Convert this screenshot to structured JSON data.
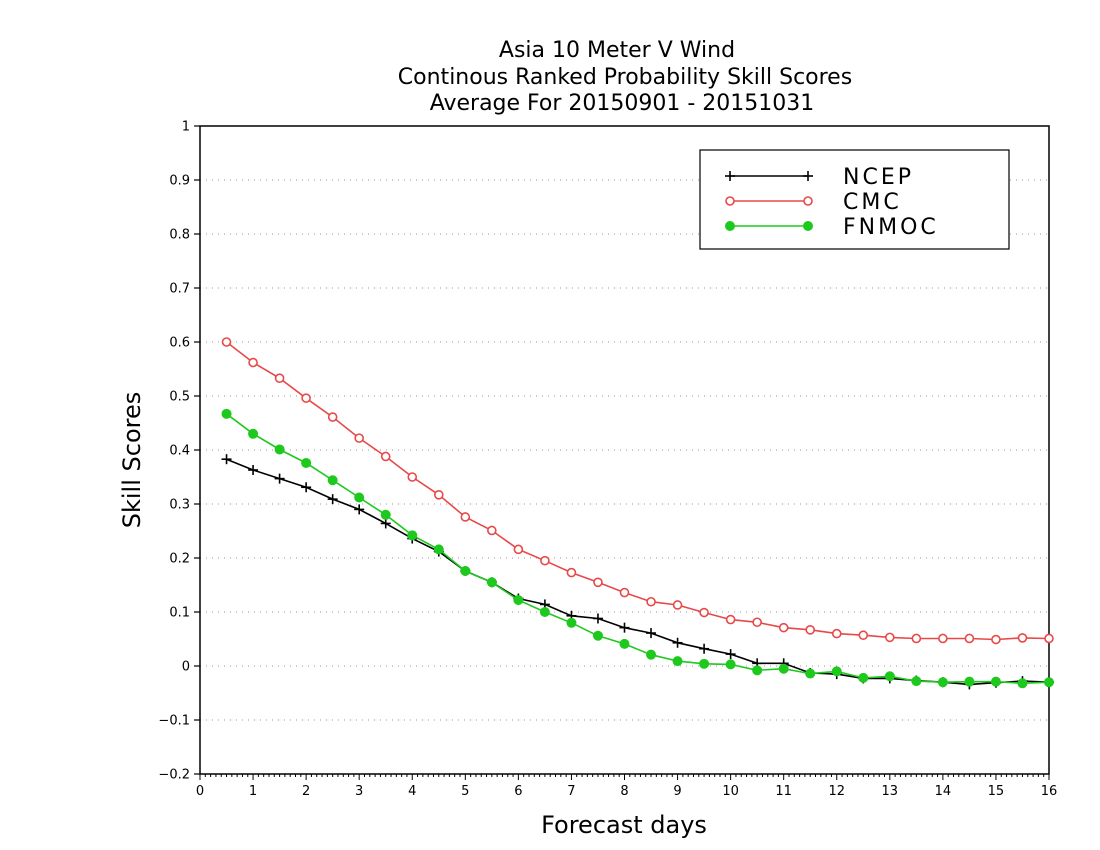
{
  "chart_data": {
    "type": "line",
    "title": [
      "Asia 10 Meter V Wind",
      "Continous Ranked Probability Skill Scores",
      "Average For 20150901 - 20151031"
    ],
    "xlabel": "Forecast days",
    "ylabel": "Skill Scores",
    "xlim": [
      0,
      16
    ],
    "ylim": [
      -0.2,
      1
    ],
    "xticks": [
      "0",
      "1",
      "2",
      "3",
      "4",
      "5",
      "6",
      "7",
      "8",
      "9",
      "10",
      "11",
      "12",
      "13",
      "14",
      "15",
      "16"
    ],
    "yticks": [
      "1",
      "0.9",
      "0.8",
      "0.7",
      "0.6",
      "0.5",
      "0.4",
      "0.3",
      "0.2",
      "0.1",
      "0",
      "−0.1",
      "−0.2"
    ],
    "ytick_values": [
      1,
      0.9,
      0.8,
      0.7,
      0.6,
      0.5,
      0.4,
      0.3,
      0.2,
      0.1,
      0,
      -0.1,
      -0.2
    ],
    "grid": "horizontal dotted",
    "legend_position": "top-right",
    "x": [
      0.5,
      1,
      1.5,
      2,
      2.5,
      3,
      3.5,
      4,
      4.5,
      5,
      5.5,
      6,
      6.5,
      7,
      7.5,
      8,
      8.5,
      9,
      9.5,
      10,
      10.5,
      11,
      11.5,
      12,
      12.5,
      13,
      13.5,
      14,
      14.5,
      15,
      15.5,
      16
    ],
    "series": [
      {
        "name": "NCEP",
        "color": "#000000",
        "marker": "plus",
        "values": [
          0.383,
          0.363,
          0.347,
          0.331,
          0.309,
          0.29,
          0.264,
          0.236,
          0.212,
          0.176,
          0.155,
          0.125,
          0.114,
          0.093,
          0.088,
          0.071,
          0.061,
          0.043,
          0.032,
          0.022,
          0.005,
          0.005,
          -0.013,
          -0.015,
          -0.023,
          -0.023,
          -0.027,
          -0.03,
          -0.034,
          -0.031,
          -0.028,
          -0.03
        ]
      },
      {
        "name": "CMC",
        "color": "#e84848",
        "marker": "open-circle",
        "values": [
          0.6,
          0.562,
          0.533,
          0.496,
          0.461,
          0.422,
          0.388,
          0.35,
          0.317,
          0.276,
          0.251,
          0.216,
          0.195,
          0.173,
          0.155,
          0.136,
          0.119,
          0.113,
          0.099,
          0.086,
          0.081,
          0.071,
          0.067,
          0.06,
          0.057,
          0.053,
          0.051,
          0.051,
          0.051,
          0.049,
          0.052,
          0.051
        ]
      },
      {
        "name": "FNMOC",
        "color": "#1ec91e",
        "marker": "filled-circle",
        "values": [
          0.467,
          0.43,
          0.401,
          0.376,
          0.344,
          0.312,
          0.28,
          0.242,
          0.216,
          0.176,
          0.155,
          0.122,
          0.1,
          0.08,
          0.056,
          0.041,
          0.021,
          0.009,
          0.004,
          0.003,
          -0.008,
          -0.005,
          -0.014,
          -0.01,
          -0.022,
          -0.019,
          -0.028,
          -0.03,
          -0.029,
          -0.029,
          -0.032,
          -0.03
        ]
      }
    ]
  }
}
